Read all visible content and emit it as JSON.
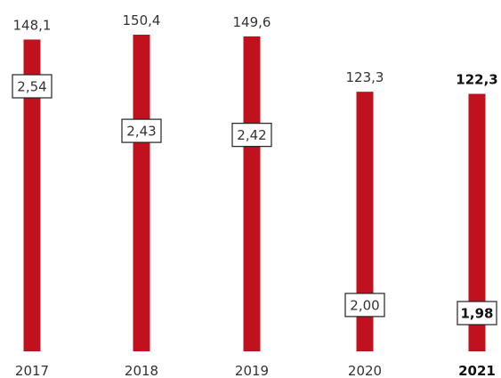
{
  "chart_data": {
    "type": "bar",
    "categories": [
      "2017",
      "2018",
      "2019",
      "2020",
      "2021"
    ],
    "series": [
      {
        "values": [
          148.1,
          150.4,
          149.6,
          123.3,
          122.3
        ]
      },
      {
        "values": [
          2.54,
          2.43,
          2.42,
          2.0,
          1.98
        ]
      }
    ],
    "value_labels": [
      "148,1",
      "150,4",
      "149,6",
      "123,3",
      "122,3"
    ],
    "box_labels": [
      "2,54",
      "2,43",
      "2,42",
      "2,00",
      "1,98"
    ],
    "highlighted_category": "2021",
    "bar_color": "#c0121e",
    "title": "",
    "xlabel": "",
    "ylabel": "",
    "grid": false,
    "ylim": [
      0,
      150.4
    ]
  }
}
